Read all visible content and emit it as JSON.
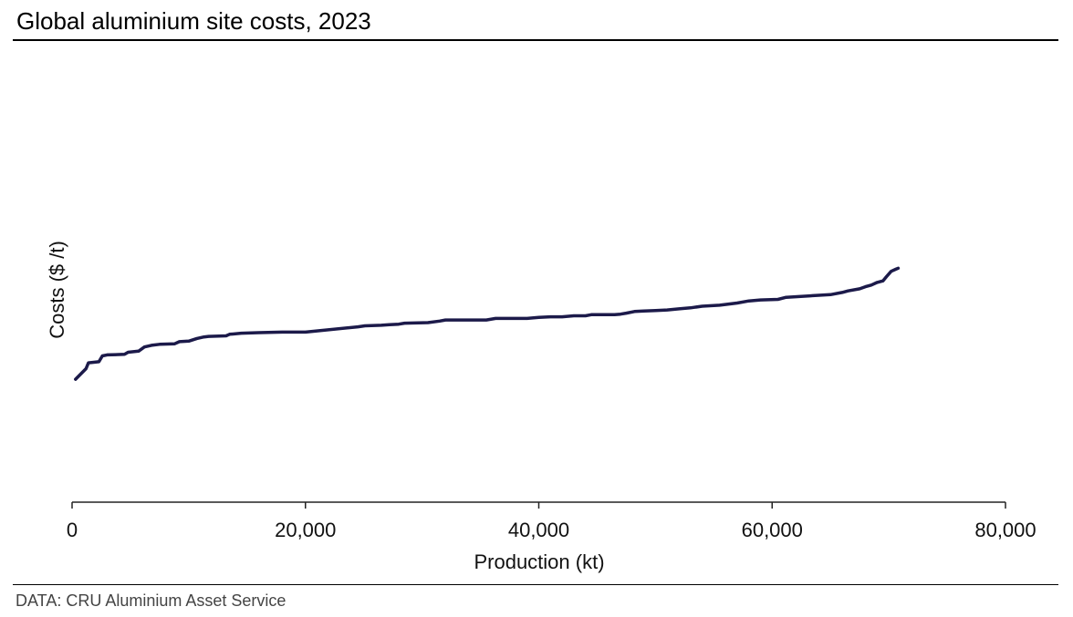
{
  "header": {
    "title": "Global aluminium site costs, 2023"
  },
  "footer": {
    "source": "DATA: CRU Aluminium Asset Service"
  },
  "chart_data": {
    "type": "line",
    "title": "Global aluminium site costs, 2023",
    "xlabel": "Production (kt)",
    "ylabel": "Costs ($ /t)",
    "xlim": [
      0,
      80000
    ],
    "x_ticks": [
      "0",
      "20,000",
      "40,000",
      "60,000",
      "80,000"
    ],
    "x_tick_values": [
      0,
      20000,
      40000,
      60000,
      80000
    ],
    "y_axis_labels_shown": false,
    "grid": false,
    "legend": "none",
    "line_color": "#1c1a4a",
    "series": [
      {
        "x": [
          300,
          1200,
          1400,
          2300,
          2600,
          3000,
          4500,
          4800,
          5700,
          6200,
          6800,
          7500,
          8800,
          9200,
          10000,
          10700,
          11300,
          11700,
          13200,
          13500,
          14500,
          16000,
          18000,
          20000,
          24500,
          25100,
          26500,
          27200,
          28000,
          28500,
          30500,
          31500,
          32000,
          35500,
          36300,
          39000,
          40000,
          41000,
          42000,
          43000,
          44000,
          44500,
          46500,
          47000,
          47500,
          48200,
          49000,
          50000,
          51000,
          52000,
          53000,
          54000,
          55500,
          57000,
          58000,
          59000,
          60500,
          61200,
          62000,
          63500,
          65000,
          66000,
          66500,
          67500,
          68000,
          68500,
          69000,
          69500,
          69800,
          70200,
          70600,
          70800
        ],
        "values": [
          -10.7,
          -8.7,
          -7.6,
          -7.4,
          -6.3,
          -6.1,
          -6.0,
          -5.6,
          -5.4,
          -4.6,
          -4.3,
          -4.1,
          -4.0,
          -3.6,
          -3.5,
          -3.0,
          -2.7,
          -2.6,
          -2.5,
          -2.2,
          -2.0,
          -1.9,
          -1.8,
          -1.8,
          -0.8,
          -0.6,
          -0.5,
          -0.4,
          -0.3,
          -0.1,
          0.0,
          0.3,
          0.5,
          0.5,
          0.8,
          0.8,
          1.0,
          1.1,
          1.1,
          1.3,
          1.3,
          1.5,
          1.5,
          1.6,
          1.8,
          2.1,
          2.2,
          2.3,
          2.4,
          2.6,
          2.8,
          3.1,
          3.3,
          3.7,
          4.1,
          4.3,
          4.4,
          4.8,
          4.9,
          5.1,
          5.3,
          5.7,
          6.0,
          6.4,
          6.8,
          7.1,
          7.6,
          7.9,
          8.7,
          9.7,
          10.1,
          10.3
        ]
      }
    ]
  }
}
